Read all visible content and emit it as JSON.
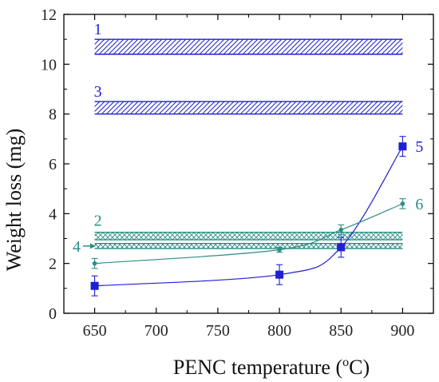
{
  "chart_data": {
    "type": "line",
    "xlabel": "PENC temperature (",
    "xlabel_sup": "o",
    "xlabel_suffix": "C)",
    "ylabel": "Weight loss (mg)",
    "xlim": [
      625,
      925
    ],
    "ylim": [
      0,
      12
    ],
    "x_ticks": [
      650,
      700,
      750,
      800,
      850,
      900
    ],
    "y_ticks": [
      0,
      2,
      4,
      6,
      8,
      10,
      12
    ],
    "grid": false,
    "colors": {
      "blue": "#1f1fd6",
      "teal": "#2a8f86",
      "axis": "#000000"
    },
    "bands": [
      {
        "label": "1",
        "y_low": 10.4,
        "y_high": 11.0,
        "x_from": 650,
        "x_to": 900,
        "color": "#1f1fd6",
        "pattern": "diagonal-hatch"
      },
      {
        "label": "3",
        "y_low": 8.0,
        "y_high": 8.5,
        "x_from": 650,
        "x_to": 900,
        "color": "#1f1fd6",
        "pattern": "diagonal-hatch"
      },
      {
        "label": "2",
        "y_low": 2.95,
        "y_high": 3.25,
        "x_from": 650,
        "x_to": 900,
        "color": "#2a8f86",
        "pattern": "cross-hatch"
      },
      {
        "label": "4",
        "y_low": 2.6,
        "y_high": 2.8,
        "x_from": 650,
        "x_to": 900,
        "color": "#2a8f86",
        "pattern": "cross-hatch"
      }
    ],
    "series": [
      {
        "name": "5",
        "color": "#1f1fd6",
        "marker": "square",
        "x": [
          650,
          800,
          850,
          900
        ],
        "y": [
          1.1,
          1.55,
          2.65,
          6.7
        ],
        "err": [
          0.4,
          0.4,
          0.4,
          0.4
        ]
      },
      {
        "name": "6",
        "color": "#2a8f86",
        "marker": "circle",
        "x": [
          650,
          800,
          850,
          900
        ],
        "y": [
          2.0,
          2.55,
          3.35,
          4.4
        ],
        "err": [
          0.2,
          0.1,
          0.2,
          0.2
        ]
      }
    ]
  }
}
